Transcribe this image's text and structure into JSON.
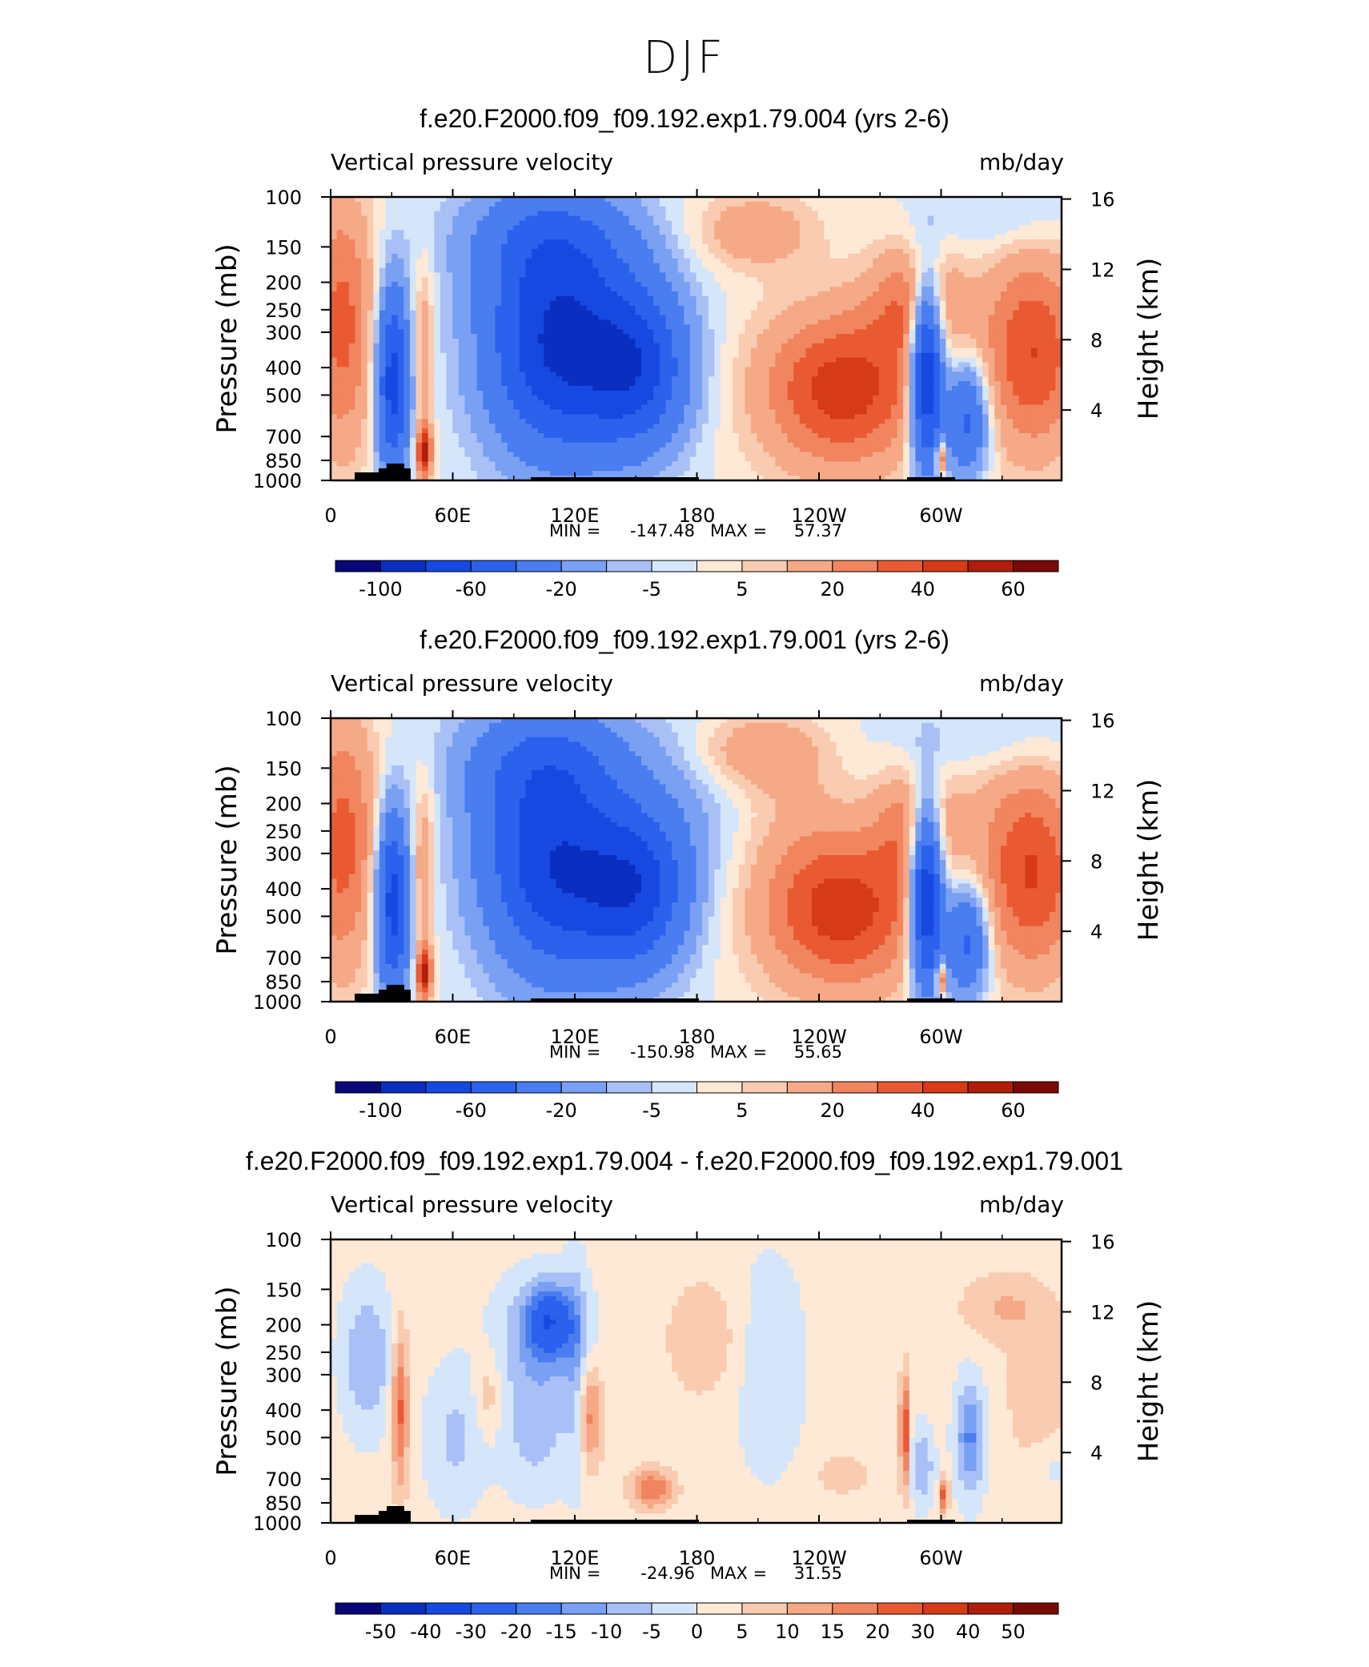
{
  "page_title": "DJF",
  "colors": {
    "absolute_scale": [
      "#08087a",
      "#0a2ec0",
      "#1749e2",
      "#2b61ec",
      "#4a7df0",
      "#7aa0f3",
      "#a8c0f6",
      "#d5e6fb",
      "#fde9d6",
      "#f9cbb0",
      "#f5a987",
      "#f0855f",
      "#ea5a32",
      "#d63a16",
      "#b01d0b",
      "#7a0a05"
    ],
    "difference_scale": [
      "#08087a",
      "#0a2ec0",
      "#1749e2",
      "#2b61ec",
      "#4a7df0",
      "#7aa0f3",
      "#a8c0f6",
      "#d5e6fb",
      "#fde9d6",
      "#f9cbb0",
      "#f5a987",
      "#f0855f",
      "#ea5a32",
      "#d63a16",
      "#b01d0b",
      "#7a0a05"
    ],
    "topography": "#000000"
  },
  "chart_data": [
    {
      "type": "heatmap",
      "title": "f.e20.F2000.f09_f09.192.exp1.79.004 (yrs 2-6)",
      "left_label": "Vertical pressure velocity",
      "units": "mb/day",
      "xlabel": "",
      "ylabel": "Pressure (mb)",
      "y2label": "Height (km)",
      "x_ticks": [
        "0",
        "60E",
        "120E",
        "180",
        "120W",
        "60W"
      ],
      "y_ticks": [
        "100",
        "150",
        "200",
        "250",
        "300",
        "400",
        "500",
        "700",
        "850",
        "1000"
      ],
      "y2_ticks": [
        "16",
        "12",
        "8",
        "4"
      ],
      "stats": {
        "min_label": "MIN = ",
        "min": "-147.48",
        "max_label": "MAX = ",
        "max": "57.37"
      },
      "colorbar_labels": [
        "-100",
        "-60",
        "-20",
        "-5",
        "5",
        "20",
        "40",
        "60"
      ],
      "color_scale": "absolute_scale",
      "levels": [
        -100,
        -80,
        -60,
        -40,
        -20,
        -10,
        -5,
        0,
        5,
        10,
        20,
        30,
        40,
        50,
        60
      ]
    },
    {
      "type": "heatmap",
      "title": "f.e20.F2000.f09_f09.192.exp1.79.001 (yrs 2-6)",
      "left_label": "Vertical pressure velocity",
      "units": "mb/day",
      "xlabel": "",
      "ylabel": "Pressure (mb)",
      "y2label": "Height (km)",
      "x_ticks": [
        "0",
        "60E",
        "120E",
        "180",
        "120W",
        "60W"
      ],
      "y_ticks": [
        "100",
        "150",
        "200",
        "250",
        "300",
        "400",
        "500",
        "700",
        "850",
        "1000"
      ],
      "y2_ticks": [
        "16",
        "12",
        "8",
        "4"
      ],
      "stats": {
        "min_label": "MIN = ",
        "min": "-150.98",
        "max_label": "MAX = ",
        "max": "55.65"
      },
      "colorbar_labels": [
        "-100",
        "-60",
        "-20",
        "-5",
        "5",
        "20",
        "40",
        "60"
      ],
      "color_scale": "absolute_scale",
      "levels": [
        -100,
        -80,
        -60,
        -40,
        -20,
        -10,
        -5,
        0,
        5,
        10,
        20,
        30,
        40,
        50,
        60
      ]
    },
    {
      "type": "heatmap",
      "title": "f.e20.F2000.f09_f09.192.exp1.79.004 - f.e20.F2000.f09_f09.192.exp1.79.001",
      "left_label": "Vertical pressure velocity",
      "units": "mb/day",
      "xlabel": "",
      "ylabel": "Pressure (mb)",
      "y2label": "Height (km)",
      "x_ticks": [
        "0",
        "60E",
        "120E",
        "180",
        "120W",
        "60W"
      ],
      "y_ticks": [
        "100",
        "150",
        "200",
        "250",
        "300",
        "400",
        "500",
        "700",
        "850",
        "1000"
      ],
      "y2_ticks": [
        "16",
        "12",
        "8",
        "4"
      ],
      "stats": {
        "min_label": "MIN = ",
        "min": "-24.96",
        "max_label": "MAX = ",
        "max": "31.55"
      },
      "colorbar_labels": [
        "-50",
        "-40",
        "-30",
        "-20",
        "-15",
        "-10",
        "-5",
        "0",
        "5",
        "10",
        "15",
        "20",
        "30",
        "40",
        "50"
      ],
      "color_scale": "difference_scale",
      "levels": [
        -50,
        -40,
        -30,
        -20,
        -15,
        -10,
        -5,
        0,
        5,
        10,
        15,
        20,
        30,
        40,
        50
      ]
    }
  ]
}
